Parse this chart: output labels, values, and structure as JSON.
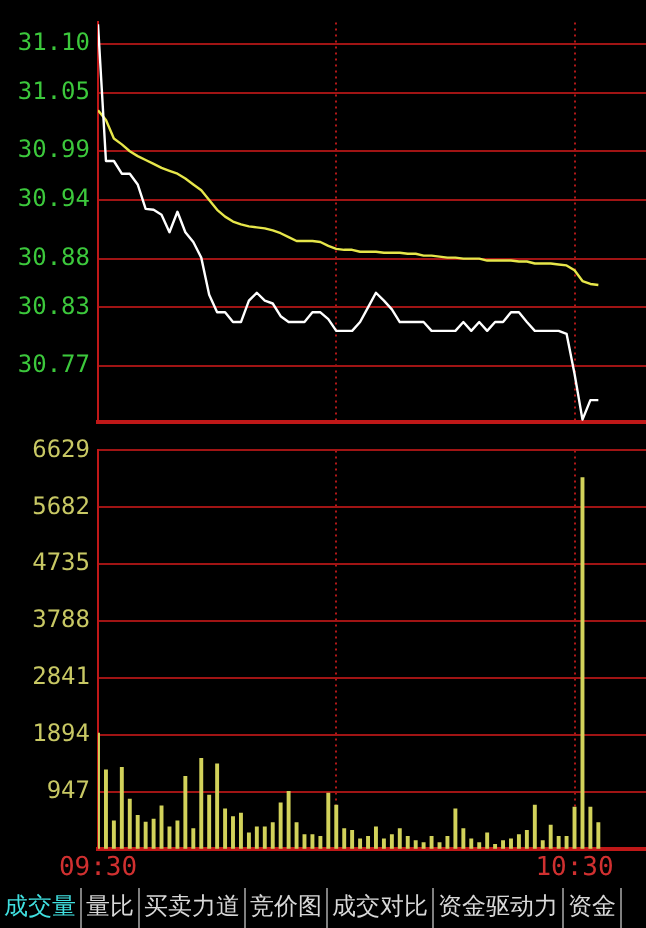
{
  "chart_data": [
    {
      "type": "line",
      "x": [
        9.5,
        9.5167,
        9.5333,
        9.55,
        9.5667,
        9.5833,
        9.6,
        9.6167,
        9.6333,
        9.65,
        9.6667,
        9.6833,
        9.7,
        9.7167,
        9.7333,
        9.75,
        9.7667,
        9.7833,
        9.8,
        9.8167,
        9.8333,
        9.85,
        9.8667,
        9.8833,
        9.9,
        9.9167,
        9.9333,
        9.95,
        9.9667,
        9.9833,
        10,
        10.0167,
        10.0333,
        10.05,
        10.0667,
        10.0833,
        10.1,
        10.1167,
        10.1333,
        10.15,
        10.1667,
        10.1833,
        10.2,
        10.2167,
        10.2333,
        10.25,
        10.2667,
        10.2833,
        10.3,
        10.3167,
        10.3333,
        10.35,
        10.3667,
        10.3833,
        10.4,
        10.4167,
        10.4333,
        10.45,
        10.4667,
        10.4833,
        10.5,
        10.5167,
        10.5333,
        10.55
      ],
      "series": [
        {
          "color": "#ffffff",
          "values": [
            31.12,
            30.98,
            30.98,
            30.967,
            30.967,
            30.956,
            30.931,
            30.93,
            30.925,
            30.907,
            30.928,
            30.907,
            30.897,
            30.881,
            30.843,
            30.825,
            30.825,
            30.815,
            30.815,
            30.837,
            30.845,
            30.837,
            30.834,
            30.821,
            30.815,
            30.815,
            30.815,
            30.825,
            30.825,
            30.818,
            30.806,
            30.806,
            30.806,
            30.815,
            30.83,
            30.845,
            30.837,
            30.828,
            30.815,
            30.815,
            30.815,
            30.815,
            30.806,
            30.806,
            30.806,
            30.806,
            30.815,
            30.806,
            30.815,
            30.806,
            30.815,
            30.815,
            30.825,
            30.825,
            30.815,
            30.806,
            30.806,
            30.806,
            30.806,
            30.803,
            30.762,
            30.715,
            30.735,
            30.735
          ]
        },
        {
          "color": "#e6e64a",
          "values": [
            31.032,
            31.022,
            31.003,
            30.997,
            30.99,
            30.985,
            30.981,
            30.977,
            30.973,
            30.97,
            30.967,
            30.962,
            30.956,
            30.95,
            30.94,
            30.93,
            30.923,
            30.918,
            30.915,
            30.913,
            30.912,
            30.911,
            30.909,
            30.906,
            30.902,
            30.898,
            30.898,
            30.898,
            30.897,
            30.893,
            30.89,
            30.889,
            30.889,
            30.887,
            30.887,
            30.887,
            30.886,
            30.886,
            30.886,
            30.885,
            30.885,
            30.883,
            30.883,
            30.882,
            30.881,
            30.881,
            30.88,
            30.88,
            30.88,
            30.878,
            30.878,
            30.878,
            30.878,
            30.877,
            30.877,
            30.875,
            30.875,
            30.875,
            30.874,
            30.873,
            30.868,
            30.857,
            30.854,
            30.853
          ]
        }
      ],
      "xlim": [
        9.5,
        10.65
      ],
      "xticks": [
        {
          "value": 9.5,
          "label": null
        },
        {
          "value": 10,
          "label": null
        },
        {
          "value": 10.5,
          "label": null
        }
      ],
      "ylim": [
        30.713,
        31.122
      ],
      "yticks": [
        {
          "value": 31.1,
          "label": "31.10"
        },
        31.05,
        30.99,
        30.94,
        30.88,
        30.83,
        30.77
      ],
      "tick_labels": "y",
      "grid": true,
      "legend": false,
      "marker": "none",
      "line_style": "solid"
    },
    {
      "type": "bar",
      "x": [
        9.5,
        9.5167,
        9.5333,
        9.55,
        9.5667,
        9.5833,
        9.6,
        9.6167,
        9.6333,
        9.65,
        9.6667,
        9.6833,
        9.7,
        9.7167,
        9.7333,
        9.75,
        9.7667,
        9.7833,
        9.8,
        9.8167,
        9.8333,
        9.85,
        9.8667,
        9.8833,
        9.9,
        9.9167,
        9.9333,
        9.95,
        9.9667,
        9.9833,
        10,
        10.0167,
        10.0333,
        10.05,
        10.0667,
        10.0833,
        10.1,
        10.1167,
        10.1333,
        10.15,
        10.1667,
        10.1833,
        10.2,
        10.2167,
        10.2333,
        10.25,
        10.2667,
        10.2833,
        10.3,
        10.3167,
        10.3333,
        10.35,
        10.3667,
        10.3833,
        10.4,
        10.4167,
        10.4333,
        10.45,
        10.4667,
        10.4833,
        10.5,
        10.5167,
        10.5333,
        10.55
      ],
      "color": "#d2d25a",
      "values": [
        1920,
        1310,
        460,
        1350,
        820,
        550,
        440,
        490,
        710,
        360,
        460,
        1200,
        330,
        1500,
        890,
        1410,
        660,
        530,
        590,
        260,
        360,
        360,
        430,
        760,
        950,
        430,
        230,
        230,
        200,
        920,
        720,
        330,
        300,
        160,
        200,
        360,
        160,
        230,
        330,
        200,
        130,
        100,
        200,
        100,
        200,
        660,
        330,
        160,
        100,
        260,
        70,
        130,
        160,
        230,
        300,
        720,
        130,
        390,
        200,
        200,
        690,
        6170,
        690,
        430
      ],
      "xlim": [
        9.5,
        10.65
      ],
      "xticks": [
        {
          "value": 9.5,
          "label": "09:30"
        },
        {
          "value": 10,
          "label": null
        },
        {
          "value": 10.5,
          "label": "10:30"
        }
      ],
      "ylim": [
        0,
        6629
      ],
      "yticks": [
        947,
        1894,
        2841,
        3788,
        4735,
        5682,
        6629
      ],
      "grid": true,
      "legend": false,
      "annotations": [
        "成交量",
        "量比",
        "买卖力道",
        "竞价图",
        "成交对比",
        "资金驱动力",
        "资金"
      ]
    }
  ]
}
